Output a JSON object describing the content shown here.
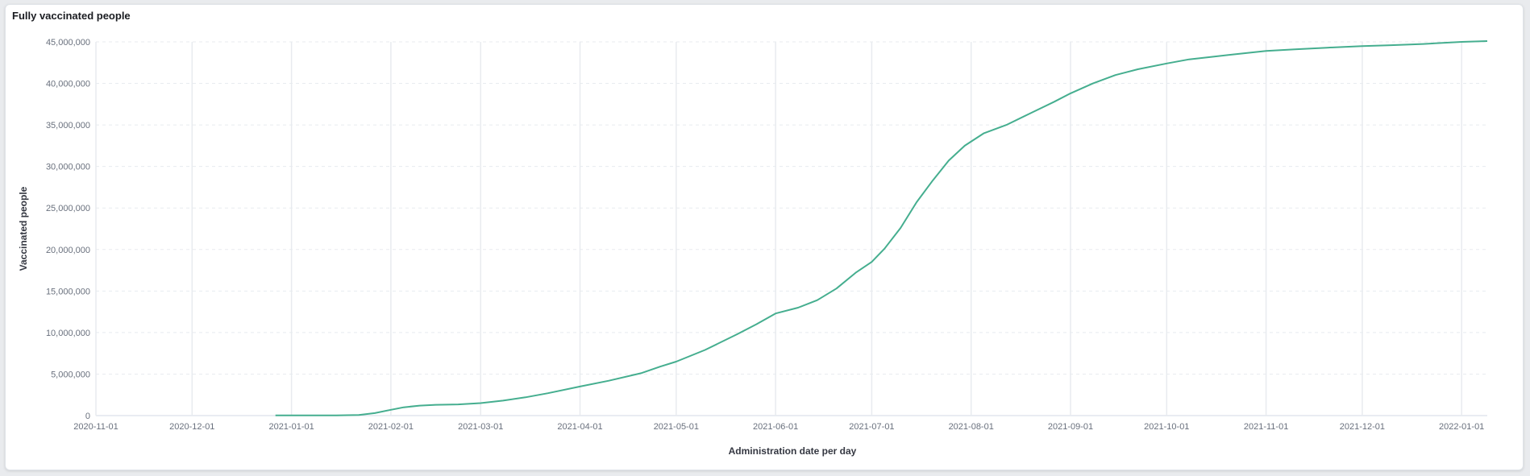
{
  "panel": {
    "title": "Fully vaccinated people"
  },
  "chart_data": {
    "type": "line",
    "title": "Fully vaccinated people",
    "xlabel": "Administration date per day",
    "ylabel": "Vaccinated people",
    "x_ticks": [
      "2020-11-01",
      "2020-12-01",
      "2021-01-01",
      "2021-02-01",
      "2021-03-01",
      "2021-04-01",
      "2021-05-01",
      "2021-06-01",
      "2021-07-01",
      "2021-08-01",
      "2021-09-01",
      "2021-10-01",
      "2021-11-01",
      "2021-12-01",
      "2022-01-01"
    ],
    "y_ticks": [
      "0",
      "5,000,000",
      "10,000,000",
      "15,000,000",
      "20,000,000",
      "25,000,000",
      "30,000,000",
      "35,000,000",
      "40,000,000",
      "45,000,000"
    ],
    "xlim": [
      "2020-11-01",
      "2022-01-09"
    ],
    "ylim": [
      0,
      45000000
    ],
    "grid": true,
    "line_color": "#45ae8f",
    "series": [
      {
        "x": [
          "2020-12-27",
          "2021-01-05",
          "2021-01-15",
          "2021-01-22",
          "2021-01-27",
          "2021-02-01",
          "2021-02-05",
          "2021-02-10",
          "2021-02-15",
          "2021-02-22",
          "2021-03-01",
          "2021-03-08",
          "2021-03-15",
          "2021-03-22",
          "2021-04-01",
          "2021-04-10",
          "2021-04-20",
          "2021-04-26",
          "2021-05-01",
          "2021-05-10",
          "2021-05-20",
          "2021-05-26",
          "2021-06-01",
          "2021-06-08",
          "2021-06-14",
          "2021-06-20",
          "2021-06-26",
          "2021-07-01",
          "2021-07-05",
          "2021-07-10",
          "2021-07-15",
          "2021-07-20",
          "2021-07-25",
          "2021-07-30",
          "2021-08-05",
          "2021-08-12",
          "2021-08-20",
          "2021-08-27",
          "2021-09-01",
          "2021-09-08",
          "2021-09-15",
          "2021-09-22",
          "2021-10-01",
          "2021-10-08",
          "2021-10-15",
          "2021-10-22",
          "2021-11-01",
          "2021-11-10",
          "2021-11-20",
          "2021-12-01",
          "2021-12-10",
          "2021-12-20",
          "2022-01-01",
          "2022-01-09"
        ],
        "y": [
          20000,
          20000,
          20000,
          80000,
          300000,
          700000,
          1000000,
          1200000,
          1300000,
          1350000,
          1500000,
          1800000,
          2200000,
          2700000,
          3500000,
          4200000,
          5100000,
          5900000,
          6500000,
          7900000,
          9800000,
          11000000,
          12300000,
          13000000,
          13900000,
          15300000,
          17200000,
          18500000,
          20100000,
          22600000,
          25700000,
          28300000,
          30700000,
          32500000,
          34000000,
          35000000,
          36500000,
          37800000,
          38800000,
          40000000,
          41000000,
          41700000,
          42400000,
          42900000,
          43200000,
          43500000,
          43900000,
          44100000,
          44300000,
          44500000,
          44600000,
          44750000,
          45000000,
          45100000
        ]
      }
    ]
  }
}
